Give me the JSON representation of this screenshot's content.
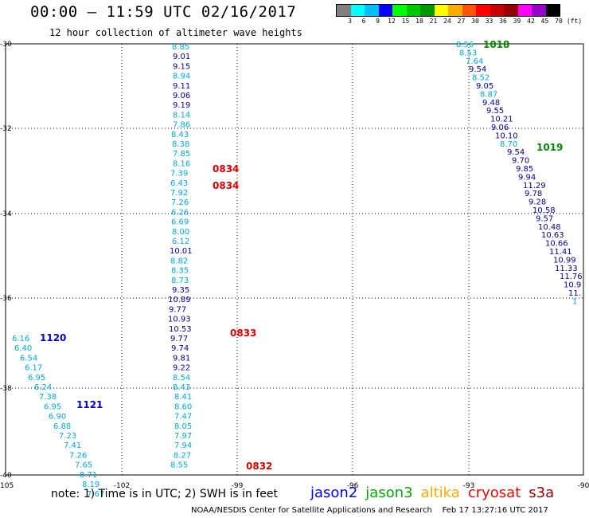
{
  "header": {
    "title": "00:00 – 11:59 UTC 02/16/2017",
    "subtitle": "12 hour collection of altimeter wave heights"
  },
  "colorbar": {
    "colors": [
      "#808080",
      "#00ffff",
      "#00bfff",
      "#0000ff",
      "#00ff00",
      "#00c800",
      "#009600",
      "#ffff00",
      "#ffaa00",
      "#ff5500",
      "#ff0000",
      "#c80000",
      "#960000",
      "#ff00ff",
      "#9600c8",
      "#000000"
    ],
    "labels": [
      "3",
      "6",
      "9",
      "12",
      "15",
      "18",
      "21",
      "24",
      "27",
      "30",
      "33",
      "36",
      "39",
      "42",
      "45",
      "70",
      "(ft)"
    ]
  },
  "axes": {
    "lon_ticks": [
      "-105",
      "-102",
      "-99",
      "-96",
      "-93",
      "-90"
    ],
    "lat_ticks": [
      "-30",
      "-32",
      "-34",
      "-36",
      "-38",
      "-40"
    ]
  },
  "tracks": [
    {
      "name": "track_a",
      "values": [
        "8.85",
        "9.01",
        "9.15",
        "8.94",
        "9.11",
        "9.06",
        "9.19",
        "8.14",
        "7.86",
        "8.43",
        "8.38",
        "7.85",
        "8.16",
        "7.39",
        "6.43",
        "7.92",
        "7.26",
        "6.26",
        "6.69",
        "8.00",
        "6.12",
        "10.01",
        "8.82",
        "8.35",
        "8.73",
        "9.35",
        "10.89",
        "9.77",
        "10.93",
        "10.53",
        "9.77",
        "9.74",
        "9.81",
        "9.22",
        "8.54",
        "8.43",
        "8.41",
        "8.60",
        "7.47",
        "8.05",
        "7.97",
        "7.94",
        "8.27",
        "8.55"
      ]
    },
    {
      "name": "track_b",
      "values": [
        "6.16",
        "6.40",
        "6.54",
        "6.17",
        "6.95",
        "6.24",
        "7.38",
        "6.95",
        "6.90",
        "6.88",
        "7.23",
        "7.41",
        "7.26",
        "7.65",
        "8.71",
        "8.19",
        "7.67"
      ]
    },
    {
      "name": "track_c",
      "values": [
        "8.56",
        "8.53",
        "7.64",
        "9.54",
        "8.52",
        "9.05",
        "8.87",
        "9.48",
        "9.55",
        "10.21",
        "9.06",
        "10.10",
        "8.70",
        "9.54",
        "9.70",
        "9.85",
        "9.94",
        "11.29",
        "9.78",
        "9.28",
        "10.58",
        "9.57",
        "10.48",
        "10.63",
        "10.66",
        "11.41",
        "10.99",
        "11.33",
        "11.76",
        "10.9",
        "11.",
        "1"
      ]
    }
  ],
  "time_labels": [
    {
      "text": "0834",
      "color": "#dd0000"
    },
    {
      "text": "0834",
      "color": "#dd0000"
    },
    {
      "text": "0833",
      "color": "#dd0000"
    },
    {
      "text": "0832",
      "color": "#dd0000"
    },
    {
      "text": "1120",
      "color": "#0000cc"
    },
    {
      "text": "1121",
      "color": "#0000cc"
    },
    {
      "text": "1018",
      "color": "#008800"
    },
    {
      "text": "1019",
      "color": "#008800"
    }
  ],
  "footer": {
    "note": "note: 1) Time is in UTC; 2) SWH is in feet",
    "legend": [
      {
        "text": "jason2",
        "color": "#0000ff"
      },
      {
        "text": "jason3",
        "color": "#00aa00"
      },
      {
        "text": "altika",
        "color": "#ffaa00"
      },
      {
        "text": "cryosat",
        "color": "#ff0000"
      },
      {
        "text": "s3a",
        "color": "#990000"
      }
    ],
    "credit": "NOAA/NESDIS Center for Satellite Applications and Research    Feb 17 13:27:16 UTC 2017"
  }
}
